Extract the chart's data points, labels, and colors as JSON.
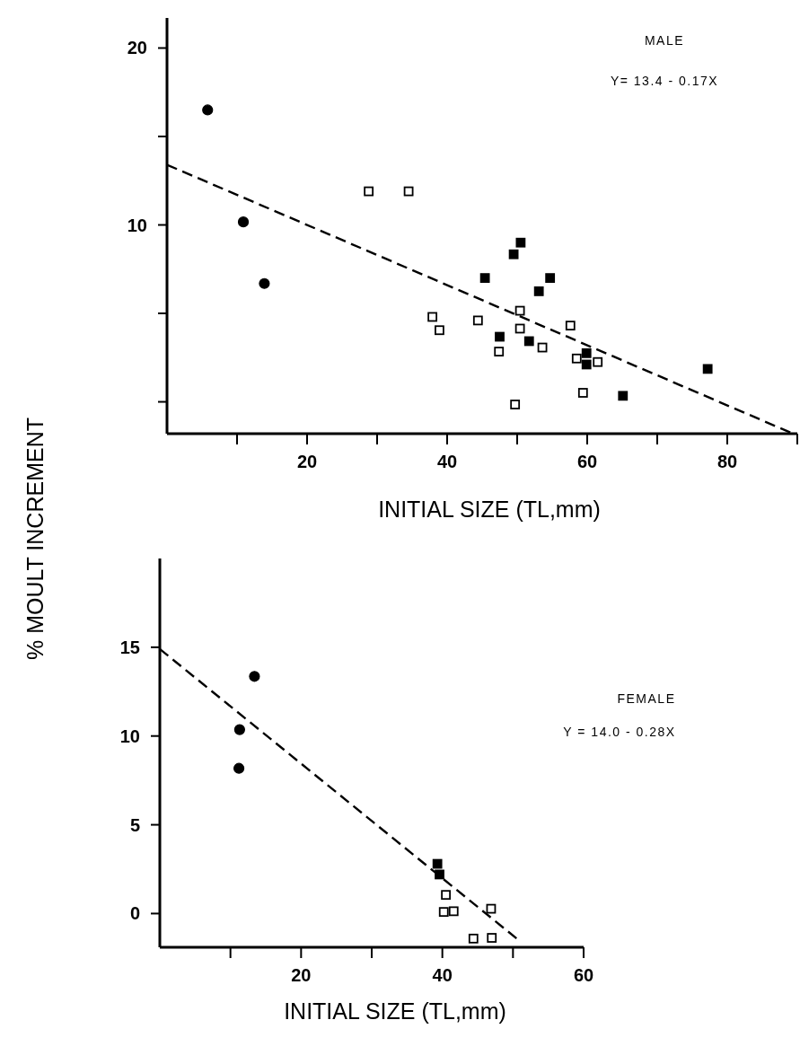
{
  "chart_data": [
    {
      "type": "scatter",
      "ylabel": "% MOULT INCREMENT",
      "xlabel": "INITIAL SIZE (TL,mm)",
      "annotations": [
        "MALE",
        "Y= 13.4 - 0.17X"
      ],
      "xlim": [
        0,
        90
      ],
      "ylim": [
        -1.8,
        21.7
      ],
      "xticks": [
        {
          "value": 10,
          "label": null
        },
        20,
        {
          "value": 30,
          "label": null
        },
        40,
        {
          "value": 50,
          "label": null
        },
        60,
        {
          "value": 70,
          "label": null
        },
        80,
        {
          "value": 90,
          "label": null
        }
      ],
      "yticks": [
        {
          "value": 0,
          "label": null
        },
        {
          "value": 5,
          "label": null
        },
        10,
        {
          "value": 15,
          "label": null
        },
        20
      ],
      "grid": false,
      "series": [
        {
          "marker": "circle",
          "color": "#000000",
          "x": [
            5.8,
            10.9,
            13.9
          ],
          "values": [
            16.5,
            10.17,
            6.69
          ]
        },
        {
          "marker": "square",
          "color": "#000000",
          "x": [
            45.4,
            47.5,
            49.5,
            50.5,
            54.7,
            53.1,
            51.7,
            59.9,
            59.9,
            65.1,
            77.2
          ],
          "values": [
            7.0,
            3.68,
            8.34,
            9.0,
            7.0,
            6.25,
            3.43,
            2.75,
            2.11,
            0.34,
            1.86
          ]
        },
        {
          "marker": "square",
          "color": "#ffffff",
          "x": [
            28.8,
            34.5,
            37.9,
            38.9,
            44.4,
            47.4,
            49.7,
            50.4,
            50.4,
            53.6,
            57.6,
            58.5,
            61.5,
            59.4
          ],
          "values": [
            11.9,
            11.9,
            4.8,
            4.05,
            4.6,
            2.84,
            -0.15,
            5.15,
            4.14,
            3.07,
            4.31,
            2.45,
            2.25,
            0.51
          ]
        },
        {
          "type": "line",
          "marker": "none",
          "line_style": "dashed",
          "color": "#000000",
          "x": [
            0,
            89
          ],
          "values": [
            13.4,
            -1.73
          ]
        }
      ]
    },
    {
      "type": "scatter",
      "xlabel": "INITIAL SIZE (TL,mm)",
      "annotations": [
        "FEMALE",
        "Y = 14.0 - 0.28X"
      ],
      "xlim": [
        0,
        60
      ],
      "ylim": [
        -1.9,
        20
      ],
      "xticks": [
        {
          "value": 10,
          "label": null
        },
        20,
        {
          "value": 30,
          "label": null
        },
        40,
        {
          "value": 50,
          "label": null
        },
        60
      ],
      "yticks": [
        0,
        5,
        10,
        15
      ],
      "grid": false,
      "series": [
        {
          "marker": "circle",
          "color": "#000000",
          "x": [
            13.4,
            11.3,
            11.2
          ],
          "values": [
            13.36,
            10.36,
            8.18
          ]
        },
        {
          "marker": "square",
          "color": "#000000",
          "x": [
            39.3,
            39.6
          ],
          "values": [
            2.8,
            2.2
          ]
        },
        {
          "marker": "square",
          "color": "#ffffff",
          "x": [
            40.5,
            40.2,
            41.6,
            46.9,
            44.4,
            47.0
          ],
          "values": [
            1.05,
            0.09,
            0.13,
            0.27,
            -1.41,
            -1.37
          ]
        },
        {
          "type": "line",
          "marker": "none",
          "line_style": "dashed",
          "color": "#000000",
          "x": [
            0,
            50.5
          ],
          "values": [
            14.9,
            -1.4
          ]
        }
      ]
    }
  ]
}
